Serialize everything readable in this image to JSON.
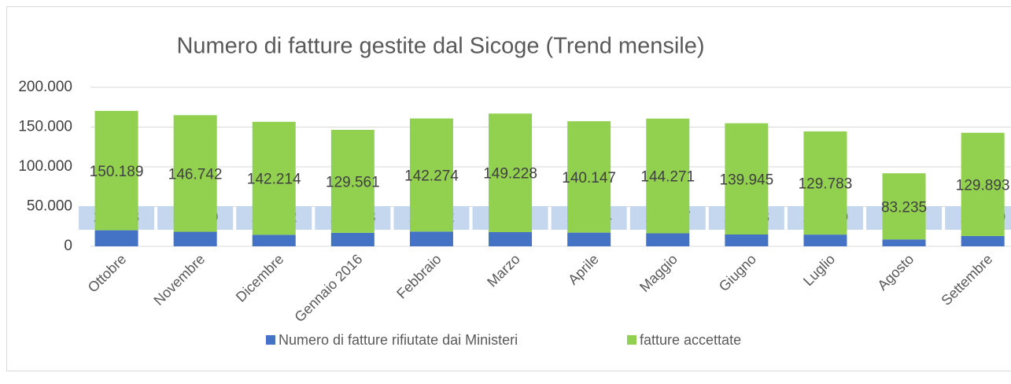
{
  "chart_data": {
    "type": "stacked_bar",
    "title": "Numero di fatture gestite dal Sicoge (Trend mensile)",
    "categories": [
      "Ottobre",
      "Novembre",
      "Dicembre",
      "Gennaio 2016",
      "Febbraio",
      "Marzo",
      "Aprile",
      "Maggio",
      "Giugno",
      "Luglio",
      "Agosto",
      "Settembre"
    ],
    "series": [
      {
        "name": "Numero di fatture rifiutate dai Ministeri",
        "color": "#4472c4",
        "values": [
          20193,
          18270,
          14432,
          16963,
          18562,
          17811,
          17214,
          16397,
          14873,
          14730,
          8638,
          12939
        ],
        "value_labels": [
          "20.193",
          "18.270",
          "14.432",
          "16.963",
          "18.562",
          "17.811",
          "17.214",
          "16.397",
          "14.873",
          "14.730",
          "8.638",
          "12.939"
        ]
      },
      {
        "name": "fatture accettate",
        "color": "#92d050",
        "values": [
          150189,
          146742,
          142214,
          129561,
          142274,
          149228,
          140147,
          144271,
          139945,
          129783,
          83235,
          129893
        ],
        "value_labels": [
          "150.189",
          "146.742",
          "142.214",
          "129.561",
          "142.274",
          "149.228",
          "140.147",
          "144.271",
          "139.945",
          "129.783",
          "83.235",
          "129.893"
        ]
      }
    ],
    "ylim": [
      0,
      200000
    ],
    "yticks": [
      0,
      {
        "value": 50000,
        "label": "50.000"
      },
      {
        "value": 100000,
        "label": "100.000"
      },
      {
        "value": 150000,
        "label": "150.000"
      },
      {
        "value": 200000,
        "label": "200.000"
      }
    ],
    "grid": true,
    "legend": "bottom"
  }
}
